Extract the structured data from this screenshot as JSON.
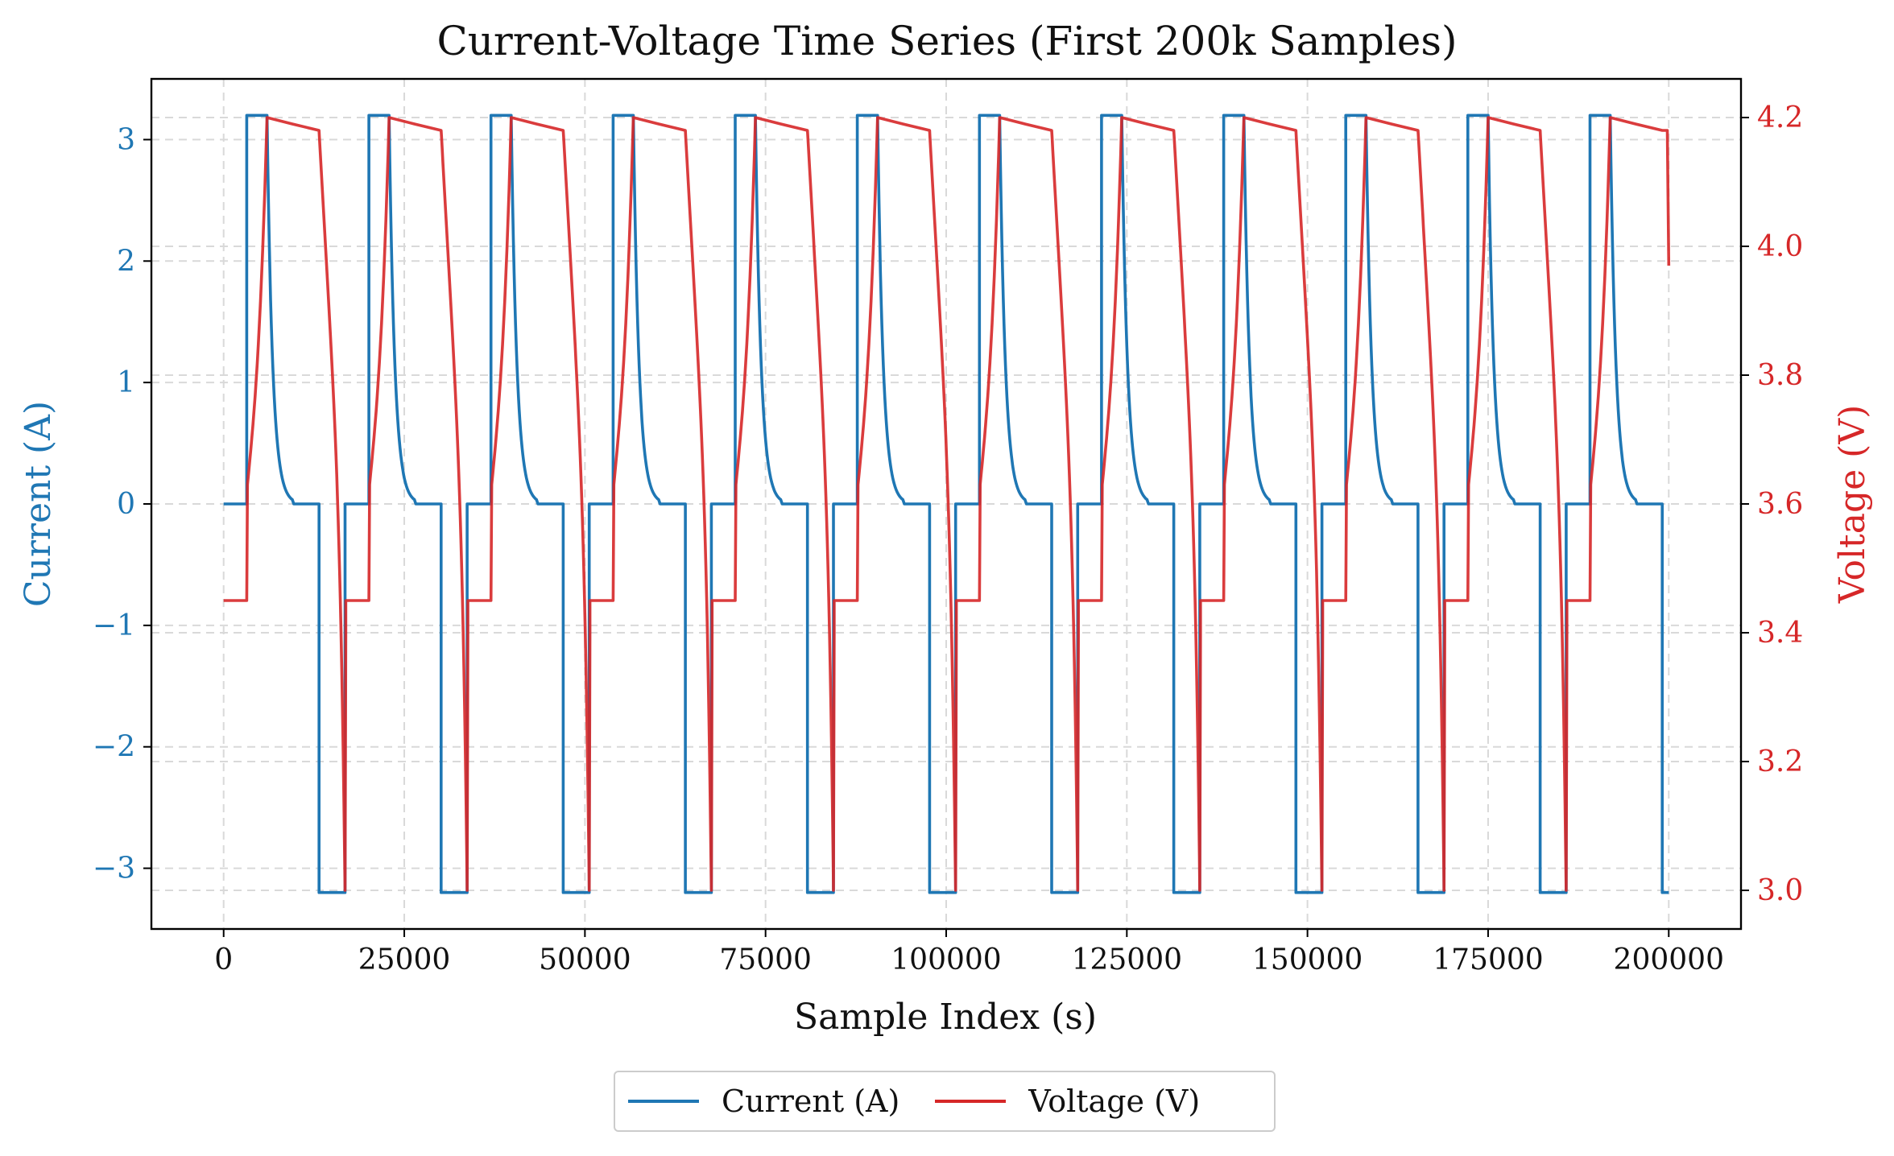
{
  "chart_data": {
    "type": "line",
    "title": "Current-Voltage Time Series (First 200k Samples)",
    "xlabel": "Sample Index (s)",
    "ylabel_left": "Current (A)",
    "ylabel_right": "Voltage (V)",
    "xlim": [
      -10000,
      210000
    ],
    "ylim_left": [
      -3.5,
      3.5
    ],
    "ylim_right": [
      2.94,
      4.26
    ],
    "xticks": [
      0,
      25000,
      50000,
      75000,
      100000,
      125000,
      150000,
      175000,
      200000
    ],
    "xtick_labels": [
      "0",
      "25000",
      "50000",
      "75000",
      "100000",
      "125000",
      "150000",
      "175000",
      "200000"
    ],
    "yticks_left": [
      -3,
      -2,
      -1,
      0,
      1,
      2,
      3
    ],
    "ytick_labels_left": [
      "−3",
      "−2",
      "−1",
      "0",
      "1",
      "2",
      "3"
    ],
    "yticks_right": [
      3.0,
      3.2,
      3.4,
      3.6,
      3.8,
      4.0,
      4.2
    ],
    "ytick_labels_right": [
      "3.0",
      "3.2",
      "3.4",
      "3.6",
      "3.8",
      "4.0",
      "4.2"
    ],
    "grid": true,
    "legend_position": "bottom-center-outside",
    "colors": {
      "current": "#1f77b4",
      "voltage": "#d62728",
      "axis": "#000000",
      "grid": "#d9d9d9"
    },
    "cycle": {
      "period": 16900,
      "count": 12,
      "charge_start": 3200,
      "cv_start": 6000,
      "charge_end": 9500,
      "discharge_start": 13200,
      "discharge_end": 16800,
      "charge_current": 3.2,
      "discharge_current": -3.2,
      "rest_voltage_low": 3.45,
      "max_voltage": 4.2,
      "min_voltage": 3.0,
      "final_voltage": 3.97
    },
    "series": [
      {
        "name": "Current (A)",
        "axis": "left",
        "color": "#1f77b4",
        "description_points": [
          [
            0,
            0
          ],
          [
            3200,
            0
          ],
          [
            3200,
            3.2
          ],
          [
            6000,
            3.2
          ],
          [
            9500,
            0.02
          ],
          [
            13200,
            0
          ],
          [
            13200,
            -3.2
          ],
          [
            16800,
            -3.2
          ],
          [
            16800,
            0
          ]
        ]
      },
      {
        "name": "Voltage (V)",
        "axis": "right",
        "color": "#d62728",
        "description_points": [
          [
            0,
            3.45
          ],
          [
            3200,
            3.45
          ],
          [
            3300,
            3.63
          ],
          [
            6000,
            4.2
          ],
          [
            9500,
            4.19
          ],
          [
            13200,
            4.18
          ],
          [
            16800,
            3.0
          ],
          [
            16900,
            3.45
          ]
        ]
      }
    ],
    "legend": [
      {
        "label": "Current (A)",
        "color": "#1f77b4"
      },
      {
        "label": "Voltage (V)",
        "color": "#d62728"
      }
    ]
  }
}
